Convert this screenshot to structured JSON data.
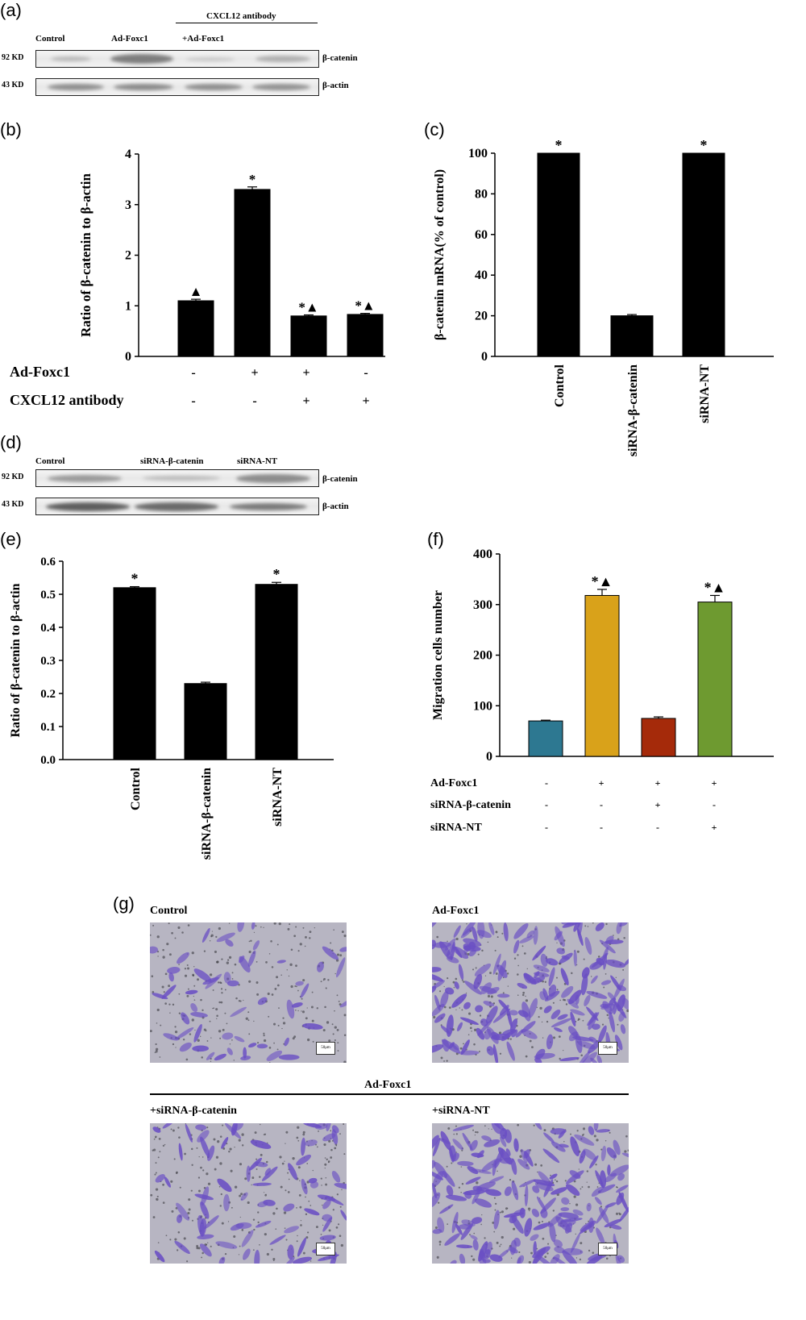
{
  "panels": {
    "a": {
      "letter": "(a)",
      "lanes": [
        "Control",
        "Ad-Foxc1",
        "+Ad-Foxc1"
      ],
      "group_label": "CXCL12 antibody",
      "rows": [
        {
          "kd": "92 KD",
          "protein": "β-catenin"
        },
        {
          "kd": "43 KD",
          "protein": "β-actin"
        }
      ]
    },
    "b": {
      "letter": "(b)"
    },
    "c": {
      "letter": "(c)"
    },
    "d": {
      "letter": "(d)",
      "lanes": [
        "Control",
        "siRNA-β-catenin",
        "siRNA-NT"
      ],
      "rows": [
        {
          "kd": "92 KD",
          "protein": "β-catenin"
        },
        {
          "kd": "43 KD",
          "protein": "β-actin"
        }
      ]
    },
    "e": {
      "letter": "(e)"
    },
    "f": {
      "letter": "(f)"
    },
    "g": {
      "letter": "(g)",
      "top_labels": [
        "Control",
        "Ad-Foxc1"
      ],
      "group_label": "Ad-Foxc1",
      "bottom_labels": [
        "+siRNA-β-catenin",
        "+siRNA-NT"
      ],
      "scale": "50μm"
    }
  },
  "chart_data": [
    {
      "id": "b",
      "type": "bar",
      "ylabel": "Ratio of β-catenin to β-actin",
      "ylim": [
        0,
        4
      ],
      "yticks": [
        0,
        1,
        2,
        3,
        4
      ],
      "values": [
        1.1,
        3.3,
        0.8,
        0.83
      ],
      "errors": [
        0.03,
        0.05,
        0.02,
        0.02
      ],
      "annotations": [
        "▲",
        "*",
        "*▲",
        "*▲"
      ],
      "colors": [
        "#000000",
        "#000000",
        "#000000",
        "#000000"
      ],
      "conditions": [
        {
          "name": "Ad-Foxc1",
          "signs": [
            "-",
            "+",
            "+",
            "-"
          ]
        },
        {
          "name": "CXCL12 antibody",
          "signs": [
            "-",
            "-",
            "+",
            "+"
          ]
        }
      ]
    },
    {
      "id": "c",
      "type": "bar",
      "ylabel": "β-catenin mRNA(% of control)",
      "ylim": [
        0,
        100
      ],
      "yticks": [
        0,
        20,
        40,
        60,
        80,
        100
      ],
      "categories": [
        "Control",
        "siRNA-β-catenin",
        "siRNA-NT"
      ],
      "values": [
        100,
        20,
        100
      ],
      "errors": [
        0,
        0.6,
        0
      ],
      "annotations": [
        "*",
        "",
        "*"
      ],
      "colors": [
        "#000000",
        "#000000",
        "#000000"
      ]
    },
    {
      "id": "e",
      "type": "bar",
      "ylabel": "Ratio of β-catenin to β-actin",
      "ylim": [
        0,
        0.6
      ],
      "yticks": [
        "0.0",
        "0.1",
        "0.2",
        "0.3",
        "0.4",
        "0.5",
        "0.6"
      ],
      "categories": [
        "Control",
        "siRNA-β-catenin",
        "siRNA-NT"
      ],
      "values": [
        0.52,
        0.23,
        0.53
      ],
      "errors": [
        0.003,
        0.004,
        0.006
      ],
      "annotations": [
        "*",
        "",
        "*"
      ],
      "colors": [
        "#000000",
        "#000000",
        "#000000"
      ]
    },
    {
      "id": "f",
      "type": "bar",
      "ylabel": "Migration cells  number",
      "ylim": [
        0,
        400
      ],
      "yticks": [
        0,
        100,
        200,
        300,
        400
      ],
      "values": [
        70,
        318,
        75,
        305
      ],
      "errors": [
        1.5,
        12,
        3,
        13
      ],
      "annotations": [
        "",
        "*▲",
        "",
        "*▲"
      ],
      "colors": [
        "#2d7891",
        "#d9a21a",
        "#a52a0a",
        "#6e9a30"
      ],
      "conditions": [
        {
          "name": "Ad-Foxc1",
          "signs": [
            "-",
            "+",
            "+",
            "+"
          ]
        },
        {
          "name": "siRNA-β-catenin",
          "signs": [
            "-",
            "-",
            "+",
            "-"
          ]
        },
        {
          "name": "siRNA-NT",
          "signs": [
            "-",
            "-",
            "-",
            "+"
          ]
        }
      ]
    }
  ]
}
